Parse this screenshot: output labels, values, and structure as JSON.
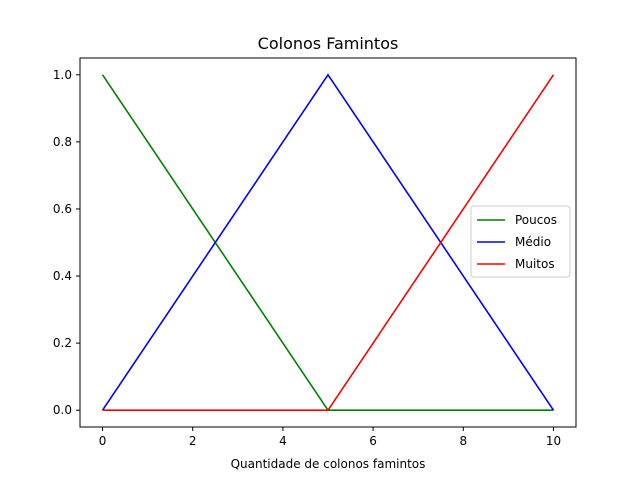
{
  "chart_data": {
    "type": "line",
    "title": "Colonos Famintos",
    "xlabel": "Quantidade de colonos famintos",
    "ylabel": "",
    "xlim": [
      -0.5,
      10.5
    ],
    "ylim": [
      -0.05,
      1.05
    ],
    "xticks": [
      0,
      2,
      4,
      6,
      8,
      10
    ],
    "yticks": [
      0.0,
      0.2,
      0.4,
      0.6,
      0.8,
      1.0
    ],
    "xtick_labels": [
      "0",
      "2",
      "4",
      "6",
      "8",
      "10"
    ],
    "ytick_labels": [
      "0.0",
      "0.2",
      "0.4",
      "0.6",
      "0.8",
      "1.0"
    ],
    "grid": false,
    "legend_position": "center-right",
    "series": [
      {
        "name": "Poucos",
        "color": "#008000",
        "x": [
          0,
          5,
          10
        ],
        "y": [
          1.0,
          0.0,
          0.0
        ]
      },
      {
        "name": "Médio",
        "color": "#0000ff",
        "x": [
          0,
          5,
          10
        ],
        "y": [
          0.0,
          1.0,
          0.0
        ]
      },
      {
        "name": "Muitos",
        "color": "#ff0000",
        "x": [
          0,
          5,
          10
        ],
        "y": [
          0.0,
          0.0,
          1.0
        ]
      }
    ]
  }
}
